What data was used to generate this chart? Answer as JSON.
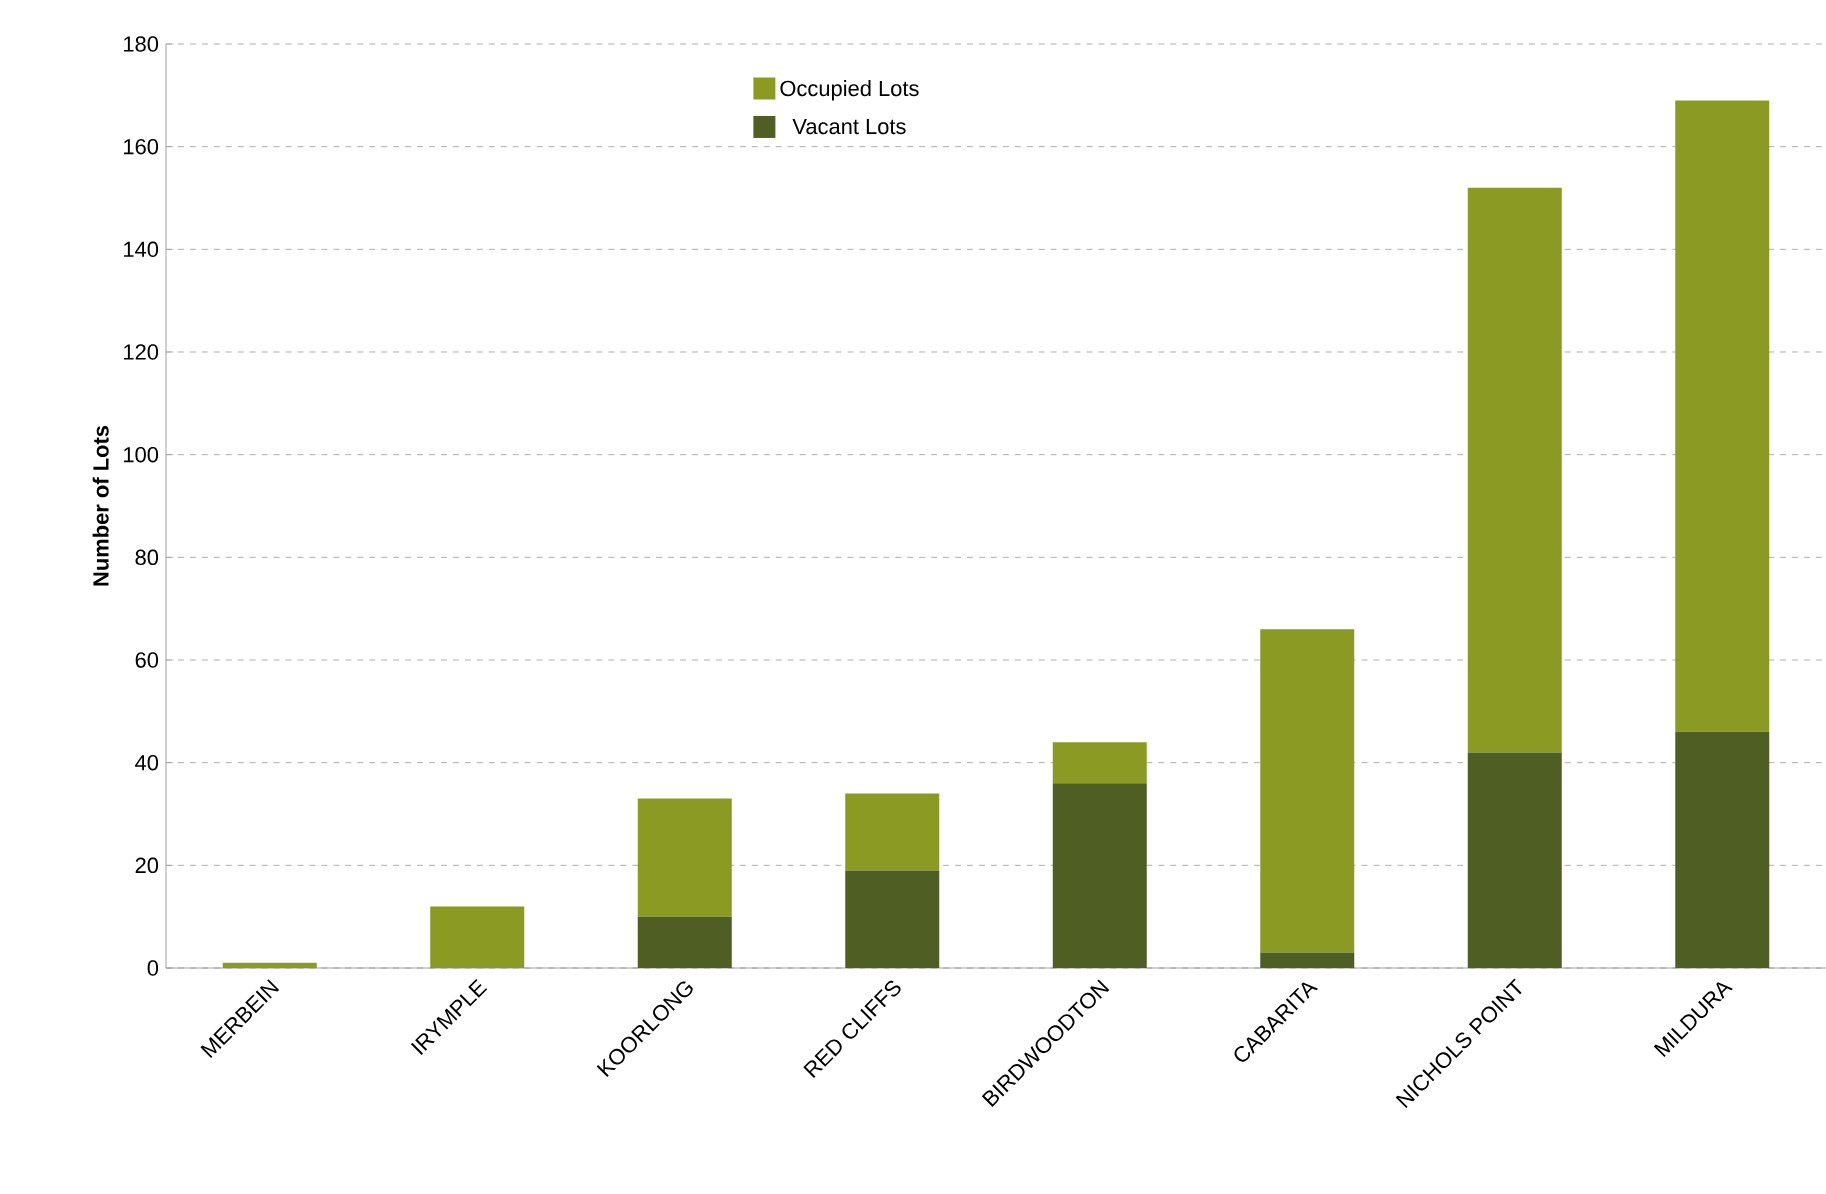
{
  "chart_data": {
    "type": "bar",
    "stacked": true,
    "ylabel": "Number of Lots",
    "categories": [
      "MERBEIN",
      "IRYMPLE",
      "KOORLONG",
      "RED CLIFFS",
      "BIRDWOODTON",
      "CABARITA",
      "NICHOLS POINT",
      "MILDURA"
    ],
    "series": [
      {
        "name": "Vacant Lots",
        "color": "#4f5e22",
        "values": [
          0,
          0,
          10,
          19,
          36,
          3,
          42,
          46
        ]
      },
      {
        "name": "Occupied Lots",
        "color": "#8a9a22",
        "values": [
          1,
          12,
          23,
          15,
          8,
          63,
          110,
          123
        ]
      }
    ],
    "ylim": [
      0,
      180
    ],
    "yticks": [
      0,
      20,
      40,
      60,
      80,
      100,
      120,
      140,
      160,
      180
    ],
    "grid": "y",
    "legend": "top"
  }
}
